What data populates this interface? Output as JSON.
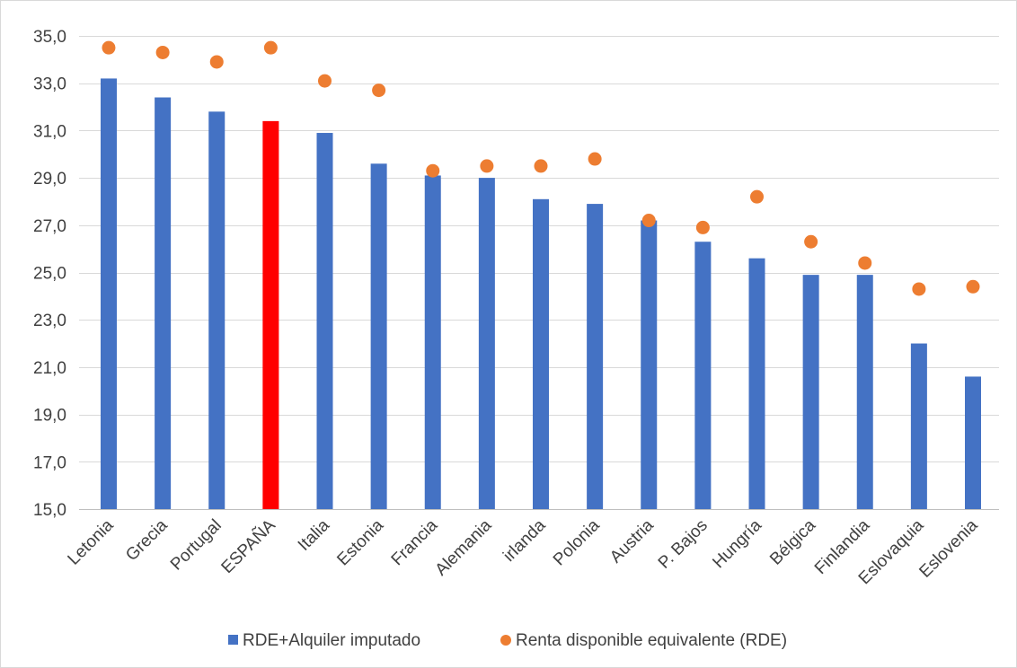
{
  "chart_data": {
    "type": "bar",
    "title": "",
    "xlabel": "",
    "ylabel": "",
    "ylim": [
      15,
      35
    ],
    "yticks": [
      "15,0",
      "17,0",
      "19,0",
      "21,0",
      "23,0",
      "25,0",
      "27,0",
      "29,0",
      "31,0",
      "33,0",
      "35,0"
    ],
    "grid": true,
    "legend_position": "bottom",
    "categories": [
      "Letonia",
      "Grecia",
      "Portugal",
      "ESPAÑA",
      "Italia",
      "Estonia",
      "Francia",
      "Alemania",
      "irlanda",
      "Polonia",
      "Austria",
      "P. Bajos",
      "Hungría",
      "Bélgica",
      "Finlandia",
      "Eslovaquia",
      "Eslovenia"
    ],
    "highlight_category": "ESPAÑA",
    "series": [
      {
        "name": "RDE+Alquiler imputado",
        "type": "bar",
        "color": "#4472c4",
        "highlight_color": "#ff0000",
        "values": [
          33.2,
          32.4,
          31.8,
          31.4,
          30.9,
          29.6,
          29.1,
          29.0,
          28.1,
          27.9,
          27.2,
          26.3,
          25.6,
          24.9,
          24.9,
          22.0,
          20.6
        ]
      },
      {
        "name": "Renta disponible equivalente (RDE)",
        "type": "scatter",
        "color": "#ed7d31",
        "values": [
          34.5,
          34.3,
          33.9,
          34.5,
          33.1,
          32.7,
          29.3,
          29.5,
          29.5,
          29.8,
          27.2,
          26.9,
          28.2,
          26.3,
          25.4,
          24.3,
          24.4
        ]
      }
    ]
  }
}
